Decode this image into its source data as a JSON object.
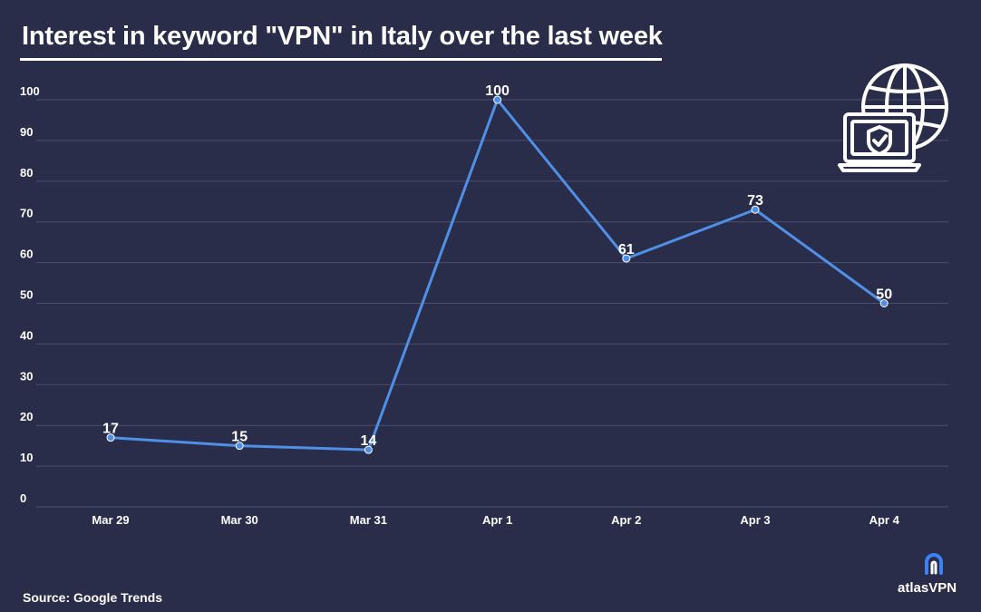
{
  "title": "Interest in keyword \"VPN\" in Italy over the last week",
  "source": "Source: Google Trends",
  "brand": {
    "name": "atlasVPN",
    "logo_icon": "atlas-vpn-logo-icon",
    "accent": "#3b82f6"
  },
  "illustration_icon": "globe-laptop-shield-icon",
  "colors": {
    "background": "#2a2d4a",
    "line": "#4f8fe6",
    "grid": "#4a4e6c",
    "text": "#ffffff"
  },
  "chart_data": {
    "type": "line",
    "categories": [
      "Mar 29",
      "Mar 30",
      "Mar 31",
      "Apr 1",
      "Apr 2",
      "Apr 3",
      "Apr 4"
    ],
    "values": [
      17,
      15,
      14,
      100,
      61,
      73,
      50
    ],
    "yticks": [
      0,
      10,
      20,
      30,
      40,
      50,
      60,
      70,
      80,
      90,
      100
    ],
    "ylim": [
      0,
      100
    ],
    "grid": true,
    "data_labels": true
  }
}
